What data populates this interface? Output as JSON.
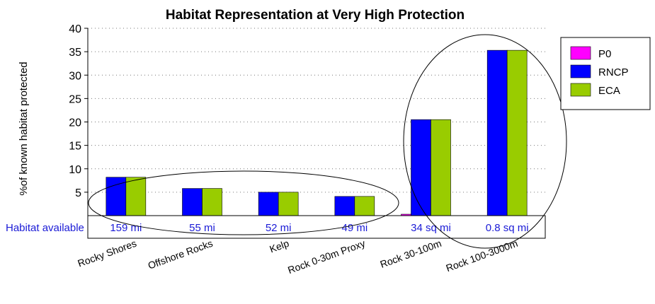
{
  "chart_data": {
    "type": "bar",
    "title": "Habitat Representation at Very High Protection",
    "ylabel": "%of known habitat protected",
    "ylim": [
      0,
      40
    ],
    "yticks": [
      "5",
      "10",
      "15",
      "20",
      "25",
      "30",
      "35",
      "40"
    ],
    "grid": "horizontal dotted",
    "legend_position": "right",
    "categories": [
      "Rocky Shores",
      "Offshore Rocks",
      "Kelp",
      "Rock 0-30m Proxy",
      "Rock 30-100m",
      "Rock 100-3000m"
    ],
    "series": [
      {
        "name": "P0",
        "color": "#ff00ff",
        "values": [
          0,
          0,
          0,
          0,
          0.3,
          0
        ]
      },
      {
        "name": "RNCP",
        "color": "#0000ff",
        "values": [
          8.2,
          5.8,
          5.0,
          4.1,
          20.5,
          35.3
        ]
      },
      {
        "name": "ECA",
        "color": "#99cc00",
        "values": [
          8.2,
          5.8,
          5.0,
          4.1,
          20.5,
          35.3
        ]
      }
    ],
    "habitat_available_label": "Habitat available",
    "habitat_available": [
      "159 mi",
      "55 mi",
      "52 mi",
      "49 mi",
      "34 sq mi",
      "0.8 sq mi"
    ]
  }
}
